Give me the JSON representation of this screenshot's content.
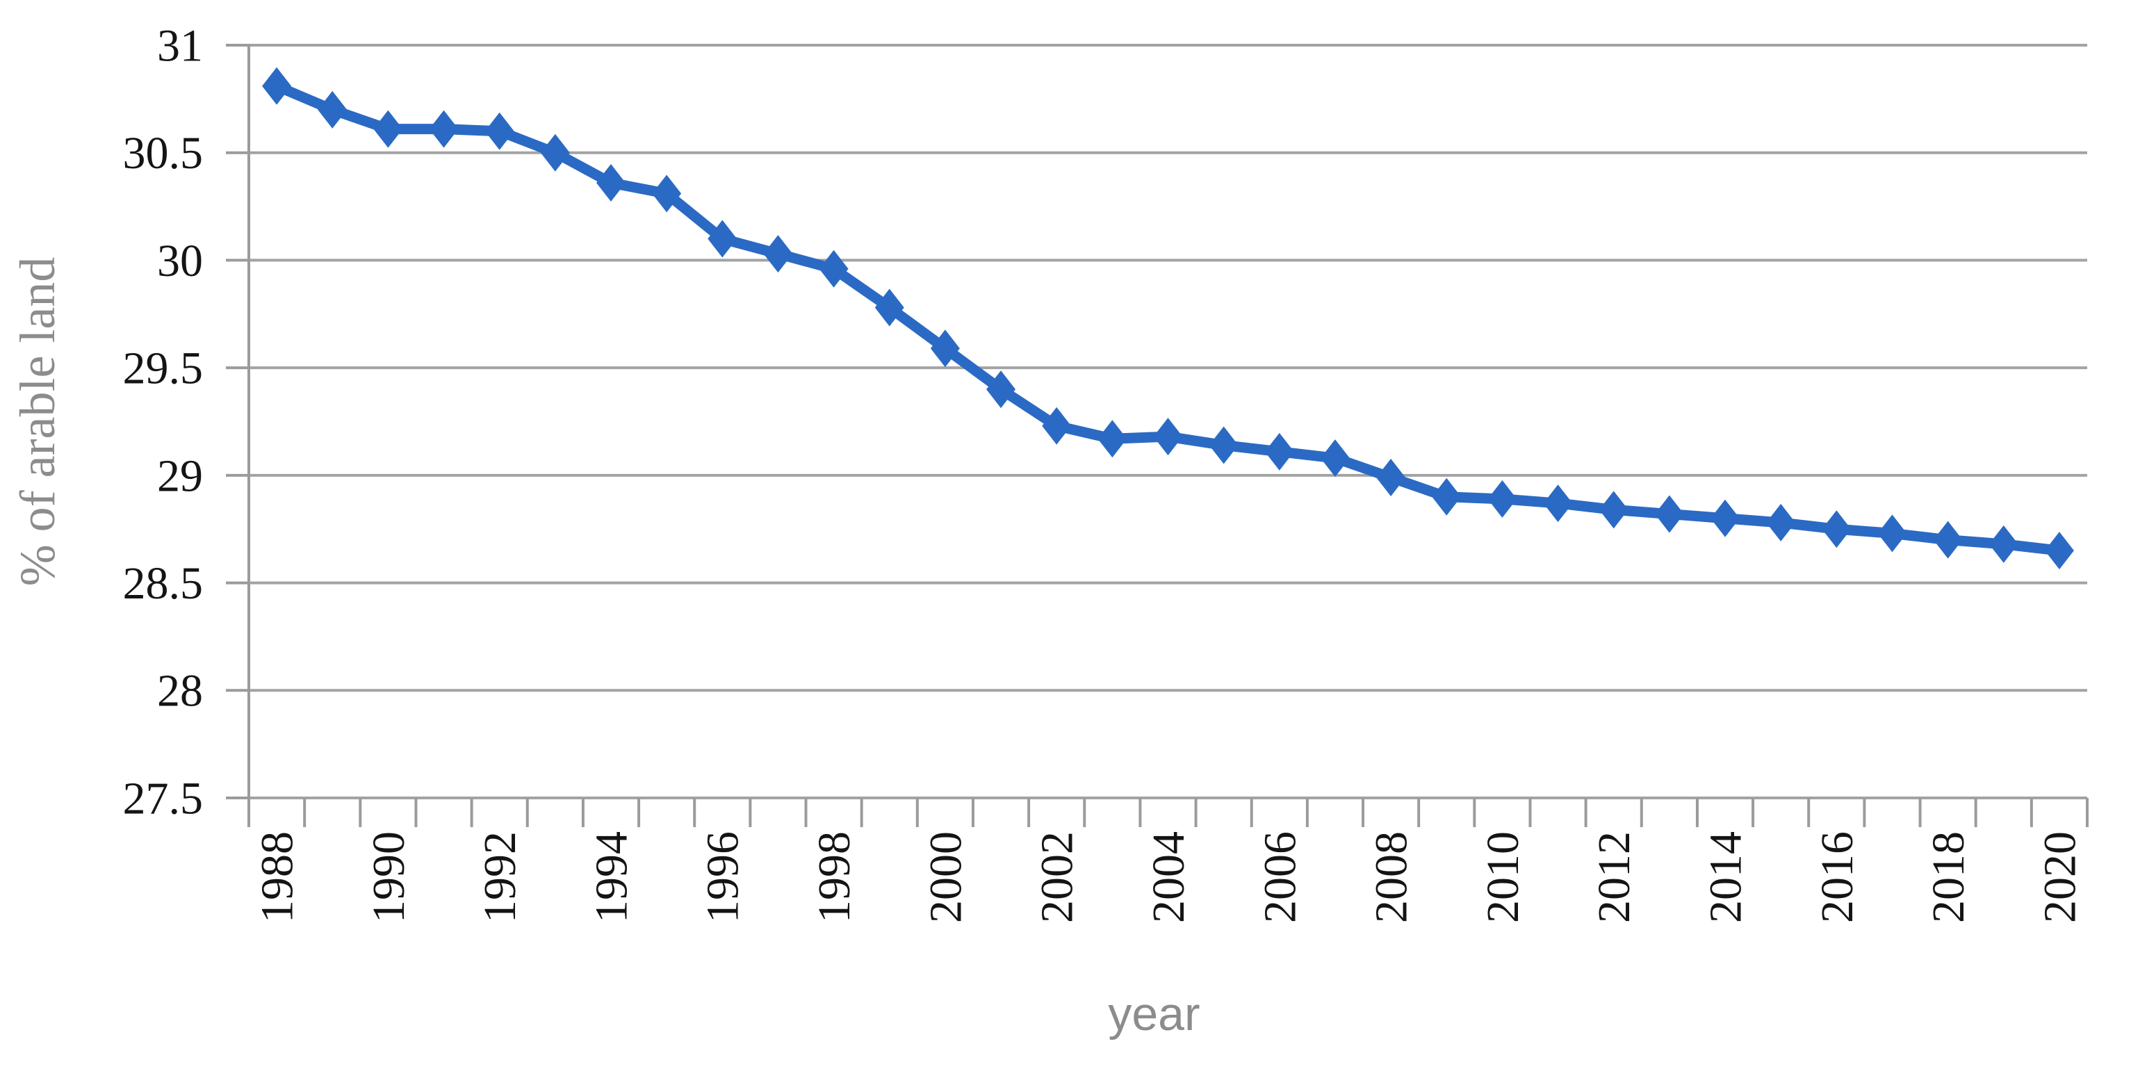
{
  "chart_data": {
    "type": "line",
    "title": "",
    "xlabel": "year",
    "ylabel": "% of arable land",
    "x": [
      1988,
      1989,
      1990,
      1991,
      1992,
      1993,
      1994,
      1995,
      1996,
      1997,
      1998,
      1999,
      2000,
      2001,
      2002,
      2003,
      2004,
      2005,
      2006,
      2007,
      2008,
      2009,
      2010,
      2011,
      2012,
      2013,
      2014,
      2015,
      2016,
      2017,
      2018,
      2019,
      2020
    ],
    "series": [
      {
        "name": "% of arable land",
        "values": [
          30.81,
          30.7,
          30.61,
          30.61,
          30.6,
          30.5,
          30.36,
          30.31,
          30.1,
          30.03,
          29.96,
          29.78,
          29.59,
          29.4,
          29.23,
          29.17,
          29.18,
          29.14,
          29.11,
          29.08,
          28.99,
          28.9,
          28.89,
          28.87,
          28.84,
          28.82,
          28.8,
          28.78,
          28.75,
          28.73,
          28.7,
          28.68,
          28.65
        ]
      }
    ],
    "ylim": [
      27.5,
      31
    ],
    "ytick_step": 0.5,
    "ytick_labels": [
      "31",
      "30.5",
      "30",
      "29.5",
      "29",
      "28.5",
      "28",
      "27.5"
    ],
    "xtick_label_every": 2,
    "grid": "horizontal-only",
    "legend": "none",
    "marker": "diamond",
    "line_color": "#2B6AC4",
    "marker_color": "#2B6AC4",
    "grid_color": "#A3A3A3",
    "axis_color": "#9B9B9B",
    "tick_label_color": "#141414",
    "axis_title_color": "#8C8C8C"
  }
}
